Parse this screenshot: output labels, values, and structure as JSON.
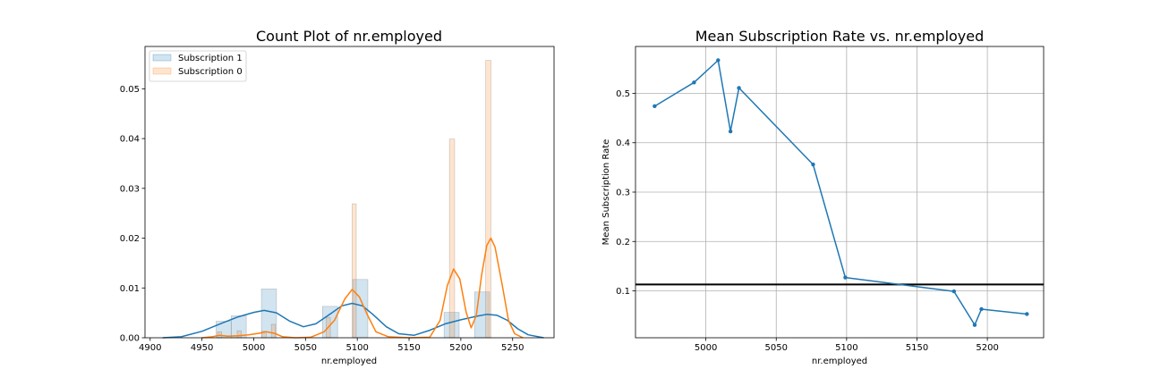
{
  "chart_data": [
    {
      "type": "bar",
      "title": "Count Plot of nr.employed",
      "xlabel": "nr.employed",
      "ylabel": "",
      "xlim": [
        4895,
        5290
      ],
      "ylim": [
        0,
        0.0585
      ],
      "xticks": [
        4900,
        4950,
        5000,
        5050,
        5100,
        5150,
        5200,
        5250
      ],
      "yticks": [
        0.0,
        0.01,
        0.02,
        0.03,
        0.04,
        0.05
      ],
      "ytick_labels": [
        "0.00",
        "0.01",
        "0.02",
        "0.03",
        "0.04",
        "0.05"
      ],
      "grid": false,
      "legend_position": "top-left",
      "colors": {
        "subscription_1": "#1f77b4",
        "subscription_0": "#ff7f0e"
      },
      "series": [
        {
          "name": "Subscription 1",
          "bins": [
            {
              "x0": 4963.6,
              "x1": 4978.2,
              "value": 0.0033
            },
            {
              "x0": 4978.2,
              "x1": 4992.8,
              "value": 0.0044
            },
            {
              "x0": 4992.8,
              "x1": 5007.4,
              "value": 0.0
            },
            {
              "x0": 5007.4,
              "x1": 5022.0,
              "value": 0.0098
            },
            {
              "x0": 5066.4,
              "x1": 5081.0,
              "value": 0.0063
            },
            {
              "x0": 5081.0,
              "x1": 5095.6,
              "value": 0.0
            },
            {
              "x0": 5095.6,
              "x1": 5110.2,
              "value": 0.0117
            },
            {
              "x0": 5183.8,
              "x1": 5198.4,
              "value": 0.0051
            },
            {
              "x0": 5213.2,
              "x1": 5227.8,
              "value": 0.0092
            }
          ],
          "kde": [
            [
              4912,
              0
            ],
            [
              4930,
              0.0002
            ],
            [
              4950,
              0.0013
            ],
            [
              4970,
              0.003
            ],
            [
              4985,
              0.0042
            ],
            [
              5000,
              0.0051
            ],
            [
              5010,
              0.0055
            ],
            [
              5022,
              0.005
            ],
            [
              5035,
              0.0033
            ],
            [
              5048,
              0.0022
            ],
            [
              5060,
              0.0028
            ],
            [
              5072,
              0.0045
            ],
            [
              5085,
              0.0064
            ],
            [
              5095,
              0.0069
            ],
            [
              5105,
              0.0064
            ],
            [
              5115,
              0.0047
            ],
            [
              5128,
              0.0022
            ],
            [
              5140,
              0.0008
            ],
            [
              5155,
              0.0005
            ],
            [
              5170,
              0.0015
            ],
            [
              5185,
              0.0028
            ],
            [
              5200,
              0.0036
            ],
            [
              5215,
              0.0043
            ],
            [
              5225,
              0.0047
            ],
            [
              5235,
              0.0045
            ],
            [
              5245,
              0.0035
            ],
            [
              5255,
              0.0018
            ],
            [
              5265,
              0.0006
            ],
            [
              5280,
              0
            ]
          ]
        },
        {
          "name": "Subscription 0",
          "bins": [
            {
              "x0": 4965,
              "x1": 4969,
              "value": 0.0012
            },
            {
              "x0": 4984,
              "x1": 4988,
              "value": 0.0014
            },
            {
              "x0": 5008,
              "x1": 5012,
              "value": 0.0013
            },
            {
              "x0": 5017,
              "x1": 5021,
              "value": 0.0027
            },
            {
              "x0": 5070,
              "x1": 5074,
              "value": 0.0041
            },
            {
              "x0": 5095,
              "x1": 5099,
              "value": 0.0269
            },
            {
              "x0": 5189,
              "x1": 5194,
              "value": 0.0399
            },
            {
              "x0": 5224,
              "x1": 5229,
              "value": 0.0557
            }
          ],
          "kde": [
            [
              4950,
              0
            ],
            [
              4960,
              0.0002
            ],
            [
              4967,
              0.0005
            ],
            [
              4975,
              0.0003
            ],
            [
              4985,
              0.0004
            ],
            [
              4995,
              0.0006
            ],
            [
              5005,
              0.0009
            ],
            [
              5012,
              0.0012
            ],
            [
              5020,
              0.0009
            ],
            [
              5028,
              0.0002
            ],
            [
              5040,
              0
            ],
            [
              5055,
              0.0001
            ],
            [
              5068,
              0.0012
            ],
            [
              5078,
              0.0035
            ],
            [
              5088,
              0.0078
            ],
            [
              5095,
              0.0097
            ],
            [
              5102,
              0.0082
            ],
            [
              5110,
              0.0045
            ],
            [
              5118,
              0.0012
            ],
            [
              5130,
              0.0002
            ],
            [
              5150,
              0
            ],
            [
              5170,
              0.0001
            ],
            [
              5180,
              0.0035
            ],
            [
              5187,
              0.0105
            ],
            [
              5193,
              0.0138
            ],
            [
              5199,
              0.0118
            ],
            [
              5205,
              0.0052
            ],
            [
              5210,
              0.002
            ],
            [
              5215,
              0.0045
            ],
            [
              5220,
              0.0125
            ],
            [
              5225,
              0.0185
            ],
            [
              5229,
              0.02
            ],
            [
              5233,
              0.0182
            ],
            [
              5240,
              0.0105
            ],
            [
              5246,
              0.0035
            ],
            [
              5252,
              0.0008
            ],
            [
              5260,
              0
            ]
          ]
        }
      ]
    },
    {
      "type": "line",
      "title": "Mean Subscription Rate vs. nr.employed",
      "xlabel": "nr.employed",
      "ylabel": "Mean Subscription Rate",
      "xlim": [
        4950,
        5240
      ],
      "ylim": [
        0.005,
        0.595
      ],
      "xticks": [
        5000,
        5050,
        5100,
        5150,
        5200
      ],
      "yticks": [
        0.1,
        0.2,
        0.3,
        0.4,
        0.5
      ],
      "ytick_labels": [
        "0.1",
        "0.2",
        "0.3",
        "0.4",
        "0.5"
      ],
      "grid": true,
      "reference_line": 0.113,
      "colors": {
        "line": "#1f77b4",
        "reference": "#000000"
      },
      "x": [
        4963.6,
        4991.6,
        5008.7,
        5017.5,
        5023.5,
        5076.2,
        5099.1,
        5176.3,
        5191.0,
        5195.8,
        5228.1
      ],
      "y": [
        0.474,
        0.522,
        0.567,
        0.423,
        0.511,
        0.356,
        0.127,
        0.099,
        0.031,
        0.063,
        0.053
      ]
    }
  ]
}
